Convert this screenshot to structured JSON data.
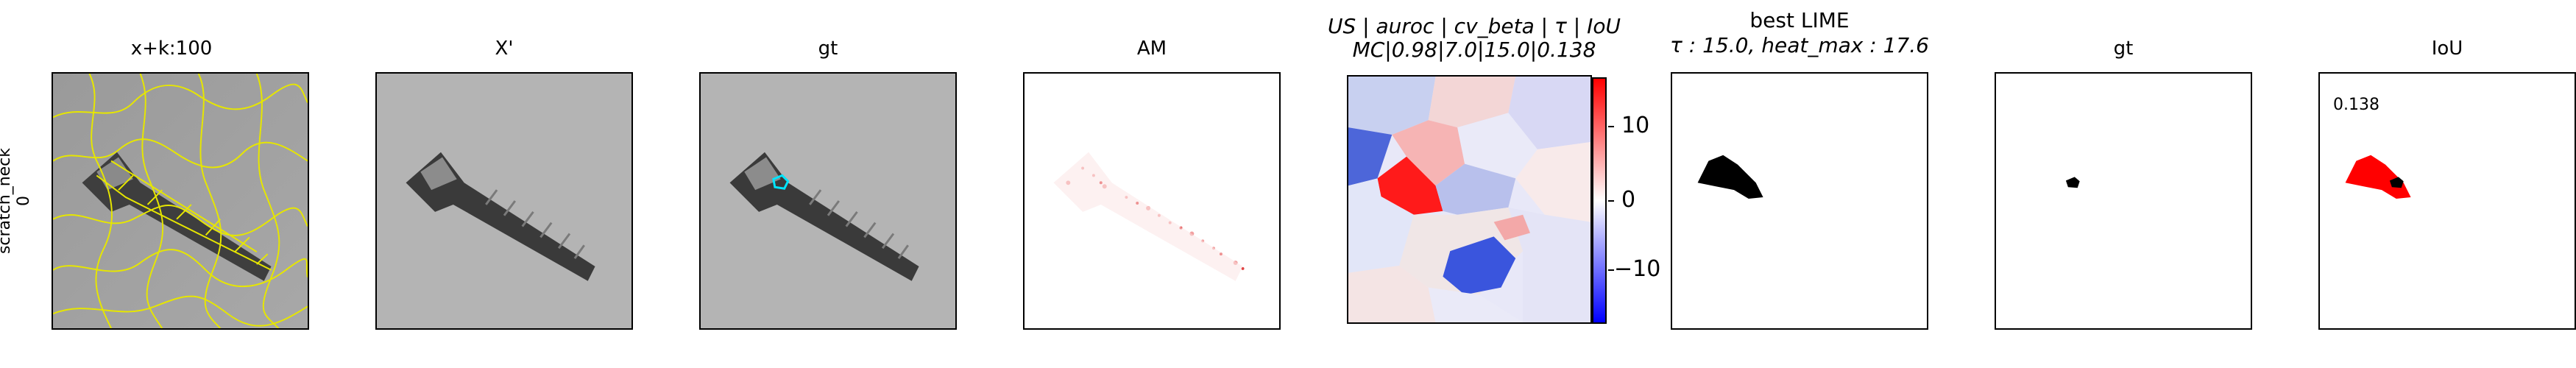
{
  "row_label": {
    "line1": "scratch_neck",
    "line2": "0"
  },
  "panels": [
    {
      "title": "x+k:100",
      "icon": "screw-superpixel-image"
    },
    {
      "title": "X'",
      "icon": "screw-grayscale-image"
    },
    {
      "title": "gt",
      "icon": "screw-groundtruth-overlay-image"
    },
    {
      "title": "AM",
      "icon": "attention-map-image"
    },
    {
      "title_line1": "US | auroc | cv_beta | τ | IoU",
      "title_line2": "MC|0.98|7.0|15.0|0.138",
      "icon": "lime-heatmap-image"
    },
    {
      "title_line1": "best LIME",
      "title_line2": "τ : 15.0, heat_max : 17.6",
      "icon": "best-lime-mask-image"
    },
    {
      "title": "gt",
      "icon": "groundtruth-mask-image"
    },
    {
      "title": "IoU",
      "icon": "iou-overlay-image",
      "value": "0.138"
    }
  ],
  "colorbar": {
    "ticks": [
      "10",
      "0",
      "−10"
    ],
    "max": 17.6,
    "min": -17.6,
    "colors": {
      "high": "#ff0000",
      "mid": "#ffffff",
      "low": "#0000ff"
    }
  }
}
